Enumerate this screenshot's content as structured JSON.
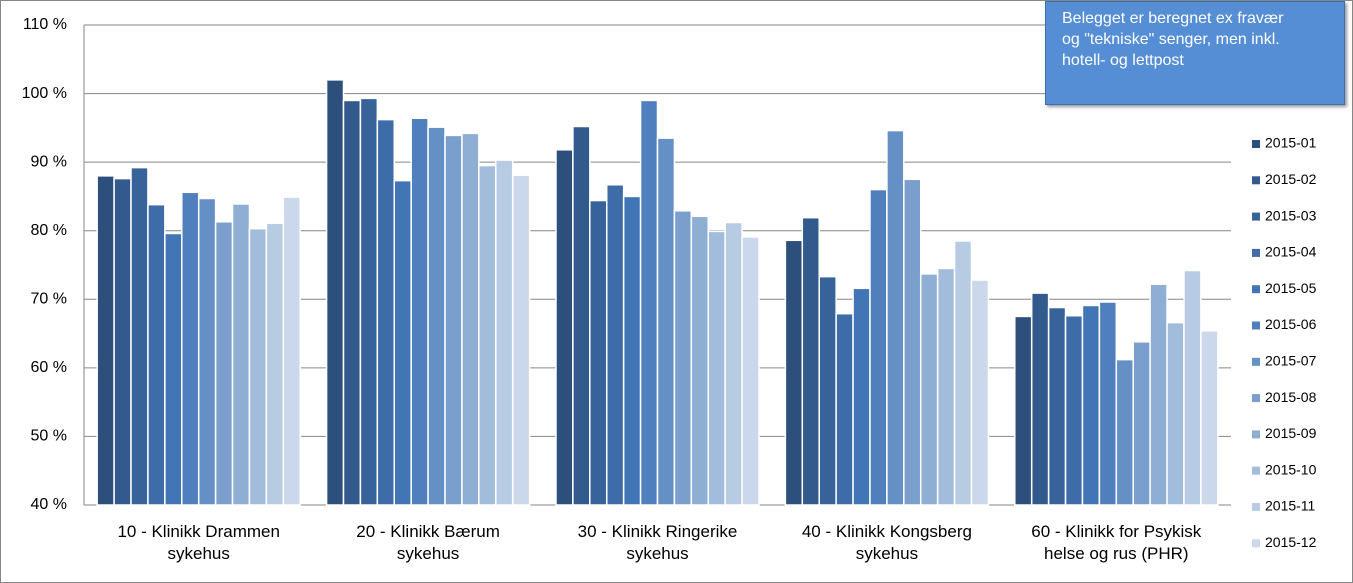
{
  "chart_data": {
    "type": "bar",
    "categories": [
      "10 - Klinikk Drammen sykehus",
      "20 - Klinikk Bærum sykehus",
      "30 - Klinikk Ringerike sykehus",
      "40 - Klinikk Kongsberg sykehus",
      "60 - Klinikk for Psykisk helse og rus (PHR)"
    ],
    "series": [
      {
        "name": "2015-01",
        "color": "#2d4f7c",
        "values": [
          88.0,
          102.0,
          91.8,
          78.6,
          67.5
        ]
      },
      {
        "name": "2015-02",
        "color": "#335a8c",
        "values": [
          87.6,
          99.0,
          95.2,
          81.9,
          70.9
        ]
      },
      {
        "name": "2015-03",
        "color": "#38639a",
        "values": [
          89.2,
          99.3,
          84.4,
          73.3,
          68.8
        ]
      },
      {
        "name": "2015-04",
        "color": "#3d6ca8",
        "values": [
          83.8,
          96.2,
          86.7,
          67.9,
          67.6
        ]
      },
      {
        "name": "2015-05",
        "color": "#4275b5",
        "values": [
          79.6,
          87.3,
          85.0,
          71.6,
          69.1
        ]
      },
      {
        "name": "2015-06",
        "color": "#4f7fbd",
        "values": [
          85.6,
          96.4,
          99.0,
          86.0,
          69.6
        ]
      },
      {
        "name": "2015-07",
        "color": "#6590c6",
        "values": [
          84.7,
          95.1,
          93.5,
          94.6,
          61.2
        ]
      },
      {
        "name": "2015-08",
        "color": "#7b9fcd",
        "values": [
          81.3,
          93.9,
          82.9,
          87.5,
          63.8
        ]
      },
      {
        "name": "2015-09",
        "color": "#8faed4",
        "values": [
          83.9,
          94.2,
          82.1,
          73.7,
          72.2
        ]
      },
      {
        "name": "2015-10",
        "color": "#a2bcdb",
        "values": [
          80.3,
          89.5,
          79.9,
          74.5,
          66.6
        ]
      },
      {
        "name": "2015-11",
        "color": "#b7cbe3",
        "values": [
          81.1,
          90.3,
          81.2,
          78.5,
          74.2
        ]
      },
      {
        "name": "2015-12",
        "color": "#cbd7ea",
        "values": [
          84.9,
          88.1,
          79.1,
          72.8,
          65.4
        ]
      }
    ],
    "ylim": [
      40,
      110
    ],
    "yticks": [
      {
        "value": 40,
        "label": "40 %"
      },
      {
        "value": 50,
        "label": "50 %"
      },
      {
        "value": 60,
        "label": "60 %"
      },
      {
        "value": 70,
        "label": "70 %"
      },
      {
        "value": 80,
        "label": "80 %"
      },
      {
        "value": 90,
        "label": "90 %"
      },
      {
        "value": 100,
        "label": "100 %"
      },
      {
        "value": 110,
        "label": "110 %"
      }
    ],
    "grid": true,
    "legend": "right",
    "annotation": [
      "Belegget er beregnet ex fravær",
      "og \"tekniske\" senger, men inkl.",
      "hotell- og lettpost"
    ]
  }
}
